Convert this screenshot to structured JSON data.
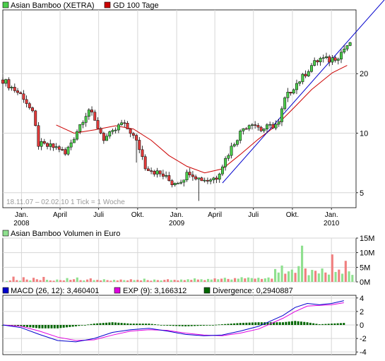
{
  "colors": {
    "up_candle": "#4ccd4c",
    "down_candle": "#e23b3b",
    "wick": "#000000",
    "gd100": "#cc0000",
    "trendline": "#0000cc",
    "volume_up": "#8fe08f",
    "volume_down": "#f08080",
    "macd": "#0000cc",
    "exp": "#e000e0",
    "divergence": "#006600",
    "grid": "#d6d6d6",
    "frame": "#000000"
  },
  "chart_data": [
    {
      "type": "candlestick",
      "legend": [
        {
          "name": "Asian Bamboo (XETRA)",
          "swatch_color": "#4ccd4c"
        },
        {
          "name": "GD 100 Tage",
          "swatch_color": "#cc0000"
        }
      ],
      "info_text": "18.11.07 – 02.02.10   1 Tick = 1 Woche",
      "y_scale": "log",
      "y_ticks": [
        "5",
        "10",
        "20"
      ],
      "y_range": [
        4.2,
        42
      ],
      "x_range": [
        "2007-11-18",
        "2010-02-28"
      ],
      "x_ticks": [
        {
          "date": "2008-01-01",
          "label": "Jan.",
          "year": "2008"
        },
        {
          "date": "2008-04-01",
          "label": "April",
          "year": ""
        },
        {
          "date": "2008-07-01",
          "label": "Juli",
          "year": ""
        },
        {
          "date": "2008-10-01",
          "label": "Okt.",
          "year": ""
        },
        {
          "date": "2009-01-01",
          "label": "Jan.",
          "year": "2009"
        },
        {
          "date": "2009-04-01",
          "label": "April",
          "year": ""
        },
        {
          "date": "2009-07-01",
          "label": "Juli",
          "year": ""
        },
        {
          "date": "2009-10-01",
          "label": "Okt.",
          "year": ""
        },
        {
          "date": "2010-01-01",
          "label": "Jan.",
          "year": "2010"
        }
      ],
      "close_path": [
        [
          "2007-11-18",
          18.6
        ],
        [
          "2007-12-09",
          17.0
        ],
        [
          "2008-01-06",
          15.2
        ],
        [
          "2008-01-27",
          12.5
        ],
        [
          "2008-02-10",
          8.8
        ],
        [
          "2008-03-02",
          8.6
        ],
        [
          "2008-03-30",
          8.4
        ],
        [
          "2008-04-13",
          7.8
        ],
        [
          "2008-05-04",
          9.6
        ],
        [
          "2008-05-25",
          11.8
        ],
        [
          "2008-06-08",
          13.2
        ],
        [
          "2008-06-22",
          11.4
        ],
        [
          "2008-07-13",
          9.4
        ],
        [
          "2008-08-03",
          10.0
        ],
        [
          "2008-08-24",
          11.2
        ],
        [
          "2008-09-14",
          10.2
        ],
        [
          "2008-10-05",
          8.4
        ],
        [
          "2008-10-19",
          6.8
        ],
        [
          "2008-11-09",
          6.4
        ],
        [
          "2008-11-30",
          6.1
        ],
        [
          "2008-12-21",
          5.6
        ],
        [
          "2009-01-11",
          5.8
        ],
        [
          "2009-02-01",
          6.4
        ],
        [
          "2009-02-22",
          5.9
        ],
        [
          "2009-03-15",
          5.8
        ],
        [
          "2009-04-05",
          6.0
        ],
        [
          "2009-04-26",
          7.4
        ],
        [
          "2009-05-17",
          9.0
        ],
        [
          "2009-06-07",
          10.6
        ],
        [
          "2009-06-28",
          11.4
        ],
        [
          "2009-07-19",
          10.4
        ],
        [
          "2009-08-09",
          10.8
        ],
        [
          "2009-08-30",
          11.2
        ],
        [
          "2009-09-13",
          14.8
        ],
        [
          "2009-10-04",
          17.2
        ],
        [
          "2009-10-25",
          19.2
        ],
        [
          "2009-11-15",
          22.0
        ],
        [
          "2009-12-06",
          23.8
        ],
        [
          "2009-12-27",
          23.4
        ],
        [
          "2010-01-17",
          24.6
        ],
        [
          "2010-02-07",
          27.8
        ]
      ],
      "gd100_path": [
        [
          "2008-03-23",
          11.0
        ],
        [
          "2008-05-04",
          10.0
        ],
        [
          "2008-06-22",
          10.4
        ],
        [
          "2008-08-10",
          10.9
        ],
        [
          "2008-09-21",
          10.5
        ],
        [
          "2008-11-02",
          9.2
        ],
        [
          "2008-12-14",
          7.7
        ],
        [
          "2009-01-25",
          6.8
        ],
        [
          "2009-03-08",
          6.3
        ],
        [
          "2009-04-19",
          6.6
        ],
        [
          "2009-05-31",
          7.8
        ],
        [
          "2009-07-12",
          9.3
        ],
        [
          "2009-08-23",
          10.9
        ],
        [
          "2009-10-04",
          13.4
        ],
        [
          "2009-11-15",
          16.6
        ],
        [
          "2010-01-03",
          20.2
        ],
        [
          "2010-02-07",
          22.0
        ]
      ],
      "trendline": [
        [
          "2009-04-19",
          5.6
        ],
        [
          "2010-02-28",
          40.0
        ]
      ]
    },
    {
      "type": "bar",
      "title": "Asian Bamboo Volumen in Euro",
      "y_ticks": [
        "0M",
        "5M",
        "10M",
        "15M"
      ],
      "y_range": [
        0,
        15000000
      ],
      "bars": [
        [
          0.3,
          1
        ],
        [
          0.5,
          0
        ],
        [
          1.8,
          0
        ],
        [
          0.6,
          0
        ],
        [
          0.4,
          1
        ],
        [
          1.6,
          0
        ],
        [
          0.8,
          0
        ],
        [
          0.5,
          1
        ],
        [
          1.4,
          0
        ],
        [
          0.9,
          0
        ],
        [
          0.6,
          0
        ],
        [
          1.7,
          0
        ],
        [
          0.7,
          1
        ],
        [
          0.5,
          0
        ],
        [
          0.4,
          0
        ],
        [
          0.8,
          1
        ],
        [
          0.6,
          0
        ],
        [
          0.5,
          0
        ],
        [
          1.3,
          1
        ],
        [
          0.7,
          0
        ],
        [
          0.9,
          0
        ],
        [
          1.5,
          1
        ],
        [
          0.6,
          0
        ],
        [
          0.5,
          1
        ],
        [
          0.8,
          0
        ],
        [
          1.2,
          0
        ],
        [
          0.6,
          1
        ],
        [
          0.7,
          0
        ],
        [
          0.5,
          0
        ],
        [
          0.9,
          1
        ],
        [
          0.6,
          0
        ],
        [
          0.4,
          0
        ],
        [
          0.7,
          1
        ],
        [
          0.5,
          0
        ],
        [
          0.8,
          0
        ],
        [
          0.6,
          1
        ],
        [
          0.5,
          0
        ],
        [
          0.9,
          0
        ],
        [
          0.6,
          1
        ],
        [
          0.7,
          0
        ],
        [
          0.5,
          0
        ],
        [
          1.1,
          1
        ],
        [
          0.6,
          0
        ],
        [
          0.4,
          0
        ],
        [
          0.8,
          1
        ],
        [
          0.6,
          0
        ],
        [
          0.5,
          1
        ],
        [
          0.7,
          0
        ],
        [
          0.9,
          0
        ],
        [
          0.6,
          1
        ],
        [
          0.7,
          0
        ],
        [
          0.5,
          0
        ],
        [
          0.8,
          1
        ],
        [
          0.6,
          0
        ],
        [
          0.9,
          1
        ],
        [
          0.7,
          0
        ],
        [
          1.2,
          1
        ],
        [
          0.8,
          0
        ],
        [
          0.9,
          1
        ],
        [
          0.6,
          0
        ],
        [
          1.0,
          1
        ],
        [
          0.8,
          1
        ],
        [
          1.2,
          0
        ],
        [
          0.9,
          1
        ],
        [
          1.1,
          0
        ],
        [
          1.4,
          1
        ],
        [
          1.0,
          0
        ],
        [
          0.8,
          1
        ],
        [
          1.3,
          0
        ],
        [
          1.1,
          1
        ],
        [
          1.6,
          1
        ],
        [
          1.2,
          0
        ],
        [
          1.5,
          1
        ],
        [
          1.3,
          1
        ],
        [
          1.1,
          0
        ],
        [
          1.4,
          1
        ],
        [
          1.0,
          0
        ],
        [
          1.2,
          1
        ],
        [
          1.5,
          1
        ],
        [
          1.1,
          0
        ],
        [
          4.4,
          1
        ],
        [
          3.2,
          1
        ],
        [
          5.6,
          1
        ],
        [
          2.8,
          0
        ],
        [
          3.6,
          1
        ],
        [
          4.2,
          1
        ],
        [
          3.1,
          0
        ],
        [
          5.4,
          1
        ],
        [
          12.4,
          1
        ],
        [
          4.6,
          0
        ],
        [
          2.3,
          1
        ],
        [
          4.1,
          1
        ],
        [
          3.8,
          0
        ],
        [
          2.9,
          1
        ],
        [
          4.6,
          1
        ],
        [
          3.2,
          0
        ],
        [
          2.5,
          1
        ],
        [
          9.4,
          0
        ],
        [
          3.4,
          1
        ],
        [
          4.2,
          0
        ],
        [
          2.8,
          1
        ],
        [
          7.2,
          0
        ],
        [
          3.6,
          1
        ],
        [
          2.4,
          1
        ]
      ]
    },
    {
      "type": "line",
      "legend": [
        {
          "name": "MACD (26, 12): 3,460401",
          "swatch_color": "#0000cc"
        },
        {
          "name": "EXP (9): 3,166312",
          "swatch_color": "#e000e0"
        },
        {
          "name": "Divergence: 0,2940887",
          "swatch_color": "#006600"
        }
      ],
      "y_ticks": [
        "-4",
        "-2",
        "0",
        "2",
        "4"
      ],
      "y_range": [
        -4.4,
        4.4
      ],
      "macd_path": [
        [
          0,
          0.0
        ],
        [
          6,
          -0.4
        ],
        [
          12,
          -1.4
        ],
        [
          18,
          -2.3
        ],
        [
          24,
          -2.5
        ],
        [
          30,
          -2.0
        ],
        [
          36,
          -1.1
        ],
        [
          42,
          -0.7
        ],
        [
          48,
          -0.5
        ],
        [
          54,
          -0.9
        ],
        [
          60,
          -1.4
        ],
        [
          66,
          -1.6
        ],
        [
          72,
          -1.5
        ],
        [
          78,
          -0.9
        ],
        [
          84,
          -0.2
        ],
        [
          88,
          0.6
        ],
        [
          92,
          1.4
        ],
        [
          96,
          2.6
        ],
        [
          100,
          3.2
        ],
        [
          104,
          3.0
        ],
        [
          108,
          3.2
        ],
        [
          112,
          3.6
        ]
      ],
      "exp_path": [
        [
          0,
          0.0
        ],
        [
          6,
          -0.2
        ],
        [
          12,
          -0.9
        ],
        [
          18,
          -1.8
        ],
        [
          24,
          -2.3
        ],
        [
          30,
          -2.2
        ],
        [
          36,
          -1.5
        ],
        [
          42,
          -0.9
        ],
        [
          48,
          -0.7
        ],
        [
          54,
          -0.8
        ],
        [
          60,
          -1.2
        ],
        [
          66,
          -1.5
        ],
        [
          72,
          -1.6
        ],
        [
          78,
          -1.2
        ],
        [
          84,
          -0.6
        ],
        [
          88,
          0.2
        ],
        [
          92,
          1.0
        ],
        [
          96,
          2.0
        ],
        [
          100,
          2.8
        ],
        [
          104,
          2.9
        ],
        [
          108,
          3.0
        ],
        [
          112,
          3.3
        ]
      ]
    }
  ]
}
